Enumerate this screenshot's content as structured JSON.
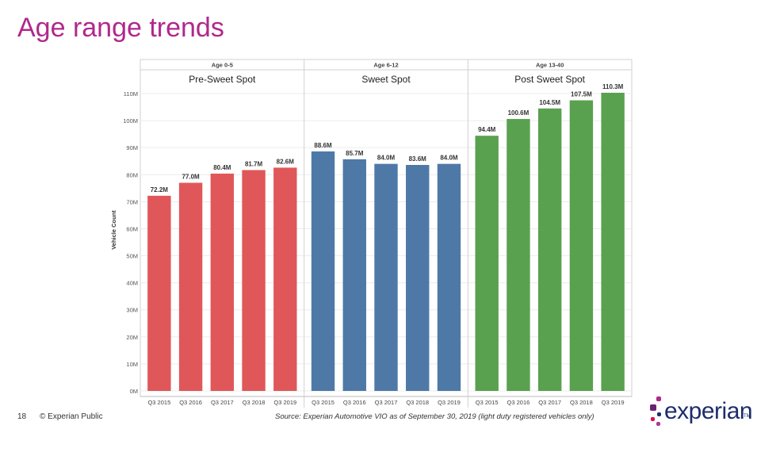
{
  "slide": {
    "title": "Age range trends",
    "page_number": "18",
    "copyright": "© Experian Public",
    "source": "Source: Experian Automotive VIO as of September 30, 2019  (light duty registered vehicles only)"
  },
  "logo": {
    "text": "experian",
    "tm": "TM",
    "colors": [
      "#6d2077",
      "#b0288c",
      "#1d2d6b",
      "#e40050",
      "#a63c96"
    ]
  },
  "chart_data": {
    "type": "bar",
    "ylabel": "Vehicle Count",
    "ylim": [
      0,
      115
    ],
    "yticks": [
      0,
      10,
      20,
      30,
      40,
      50,
      60,
      70,
      80,
      90,
      100,
      110
    ],
    "ytick_labels": [
      "0M",
      "10M",
      "20M",
      "30M",
      "40M",
      "50M",
      "60M",
      "70M",
      "80M",
      "90M",
      "100M",
      "110M"
    ],
    "grid": true,
    "categories": [
      "Q3 2015",
      "Q3 2016",
      "Q3 2017",
      "Q3 2018",
      "Q3 2019"
    ],
    "panels": [
      {
        "header": "Age 0-5",
        "label": "Pre-Sweet Spot",
        "color": "#e05759",
        "values": [
          72.2,
          77.0,
          80.4,
          81.7,
          82.6
        ],
        "value_labels": [
          "72.2M",
          "77.0M",
          "80.4M",
          "81.7M",
          "82.6M"
        ]
      },
      {
        "header": "Age 6-12",
        "label": "Sweet Spot",
        "color": "#4e79a7",
        "values": [
          88.6,
          85.7,
          84.0,
          83.6,
          84.0
        ],
        "value_labels": [
          "88.6M",
          "85.7M",
          "84.0M",
          "83.6M",
          "84.0M"
        ]
      },
      {
        "header": "Age 13-40",
        "label": "Post Sweet Spot",
        "color": "#59a14f",
        "values": [
          94.4,
          100.6,
          104.5,
          107.5,
          110.3
        ],
        "value_labels": [
          "94.4M",
          "100.6M",
          "104.5M",
          "107.5M",
          "110.3M"
        ]
      }
    ]
  }
}
